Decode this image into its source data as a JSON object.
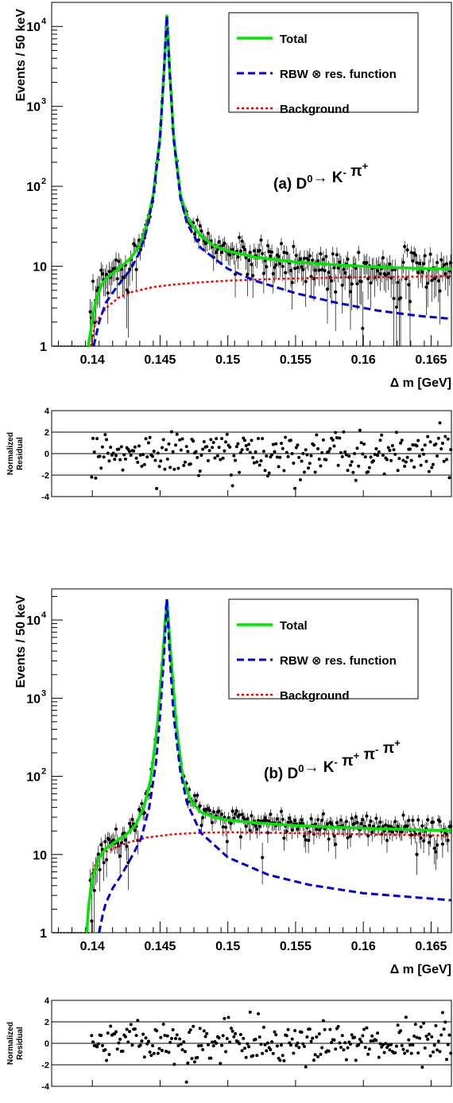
{
  "colors": {
    "total": "#00e600",
    "signal": "#0000dd",
    "background": "#ee0000",
    "data": "#000000"
  },
  "ylabel": "Events / 50 keV",
  "xlabel": "Δ m [GeV]",
  "x_ticks": [
    "0.14",
    "0.145",
    "0.15",
    "0.155",
    "0.16",
    "0.165"
  ],
  "residual_ylabel": [
    "Normalized",
    "Residual"
  ],
  "residual_ticks": [
    "4",
    "2",
    "0",
    "-2",
    "-4"
  ],
  "legend": {
    "total": "Total",
    "signal": "RBW ⊗ res. function",
    "background": "Background"
  },
  "panels": [
    {
      "label": {
        "prefix": "(a) D",
        "sup0": "0",
        "arrow": "→ K",
        "supK": "-",
        "rest": [
          {
            "t": " π",
            "s": "+"
          }
        ]
      },
      "y_ticks": [
        "1",
        "10",
        "10",
        "10",
        "10"
      ],
      "y_tick_sups": [
        "",
        "",
        "2",
        "3",
        "4"
      ]
    },
    {
      "label": {
        "prefix": "(b) D",
        "sup0": "0",
        "arrow": "→ K",
        "supK": "-",
        "rest": [
          {
            "t": " π",
            "s": "+"
          },
          {
            "t": " π",
            "s": "-"
          },
          {
            "t": " π",
            "s": "+"
          }
        ]
      },
      "y_ticks": [
        "1",
        "10",
        "10",
        "10",
        "10"
      ],
      "y_tick_sups": [
        "",
        "",
        "2",
        "3",
        "4"
      ]
    }
  ],
  "chart_data": [
    {
      "type": "line",
      "panel": "(a) D0 -> K- pi+",
      "xlabel": "Δ m [GeV]",
      "ylabel": "Events / 50 keV",
      "xlim": [
        0.137,
        0.1665
      ],
      "ylim": [
        1,
        20000
      ],
      "yscale": "log",
      "legend_position": "top-right",
      "series": [
        {
          "name": "Total",
          "style": "solid",
          "x": [
            0.1397,
            0.1402,
            0.1407,
            0.1412,
            0.142,
            0.1428,
            0.1435,
            0.144,
            0.1445,
            0.145,
            0.1453,
            0.1455,
            0.1457,
            0.146,
            0.1465,
            0.147,
            0.148,
            0.149,
            0.15,
            0.152,
            0.155,
            0.158,
            0.161,
            0.164,
            0.1665
          ],
          "y": [
            1,
            3.4,
            6.0,
            7.5,
            9.5,
            12.5,
            18,
            32,
            80,
            420,
            3000,
            14000,
            3000,
            420,
            80,
            40,
            24,
            18,
            15.5,
            13,
            11.3,
            10.4,
            9.8,
            9.4,
            9.2
          ]
        },
        {
          "name": "RBW ⊗ res. function",
          "style": "dashed",
          "x": [
            0.1401,
            0.1405,
            0.141,
            0.1418,
            0.1428,
            0.1435,
            0.144,
            0.1445,
            0.145,
            0.1453,
            0.1455,
            0.1457,
            0.146,
            0.1465,
            0.147,
            0.148,
            0.15,
            0.152,
            0.155,
            0.158,
            0.161,
            0.164,
            0.1665
          ],
          "y": [
            1,
            2,
            3.5,
            5.5,
            9,
            15,
            28,
            75,
            400,
            2900,
            13500,
            2900,
            400,
            72,
            34,
            17,
            9.3,
            6.6,
            4.6,
            3.5,
            2.8,
            2.4,
            2.2
          ]
        },
        {
          "name": "Background",
          "style": "dotted",
          "x": [
            0.1399,
            0.1402,
            0.141,
            0.142,
            0.143,
            0.1445,
            0.146,
            0.148,
            0.15,
            0.153,
            0.156,
            0.16,
            0.1665
          ],
          "y": [
            1,
            1.9,
            3,
            4.1,
            4.8,
            5.5,
            5.9,
            6.3,
            6.6,
            6.9,
            7.1,
            7.3,
            7.5
          ]
        }
      ]
    },
    {
      "type": "line",
      "panel": "(b) D0 -> K- pi+ pi- pi+",
      "xlabel": "Δ m [GeV]",
      "ylabel": "Events / 50 keV",
      "xlim": [
        0.137,
        0.1665
      ],
      "ylim": [
        1,
        25000
      ],
      "yscale": "log",
      "legend_position": "top-right",
      "series": [
        {
          "name": "Total",
          "style": "solid",
          "x": [
            0.1396,
            0.1397,
            0.14,
            0.1405,
            0.141,
            0.1418,
            0.1425,
            0.1432,
            0.1438,
            0.1443,
            0.1448,
            0.1452,
            0.1455,
            0.1458,
            0.1462,
            0.1467,
            0.1473,
            0.148,
            0.149,
            0.15,
            0.152,
            0.155,
            0.158,
            0.161,
            0.164,
            0.1665
          ],
          "y": [
            1,
            2,
            5,
            9,
            12,
            15,
            18,
            24,
            40,
            90,
            450,
            3500,
            19000,
            3500,
            450,
            90,
            48,
            35,
            30,
            27.5,
            25.5,
            23.5,
            22.3,
            21.4,
            20.7,
            20.2
          ]
        },
        {
          "name": "RBW ⊗ res. function",
          "style": "dashed",
          "x": [
            0.1405,
            0.1408,
            0.141,
            0.1415,
            0.142,
            0.1425,
            0.143,
            0.1436,
            0.1442,
            0.1447,
            0.145,
            0.1453,
            0.1455,
            0.1457,
            0.146,
            0.1465,
            0.147,
            0.148,
            0.15,
            0.153,
            0.156,
            0.16,
            0.1665
          ],
          "y": [
            1,
            1.8,
            2.4,
            3.7,
            5,
            7,
            10,
            16,
            40,
            150,
            600,
            3800,
            18500,
            3800,
            600,
            115,
            45,
            19,
            9.2,
            5.5,
            4.1,
            3.2,
            2.6
          ]
        },
        {
          "name": "Background",
          "style": "dotted",
          "x": [
            0.1396,
            0.1398,
            0.14,
            0.1405,
            0.141,
            0.1418,
            0.1428,
            0.144,
            0.146,
            0.148,
            0.15,
            0.153,
            0.157,
            0.161,
            0.1665
          ],
          "y": [
            1,
            3,
            6,
            9.5,
            10.8,
            12.5,
            14.5,
            16.5,
            18.2,
            19,
            19.3,
            19,
            18.5,
            18,
            17.5
          ]
        }
      ]
    },
    {
      "type": "scatter",
      "panel": "(a) residuals",
      "ylabel": "Normalized Residual",
      "ylim": [
        -4,
        4
      ],
      "reference_lines": [
        2,
        0,
        -2
      ]
    },
    {
      "type": "scatter",
      "panel": "(b) residuals",
      "ylabel": "Normalized Residual",
      "ylim": [
        -4,
        4
      ],
      "reference_lines": [
        2,
        0,
        -2
      ]
    }
  ]
}
